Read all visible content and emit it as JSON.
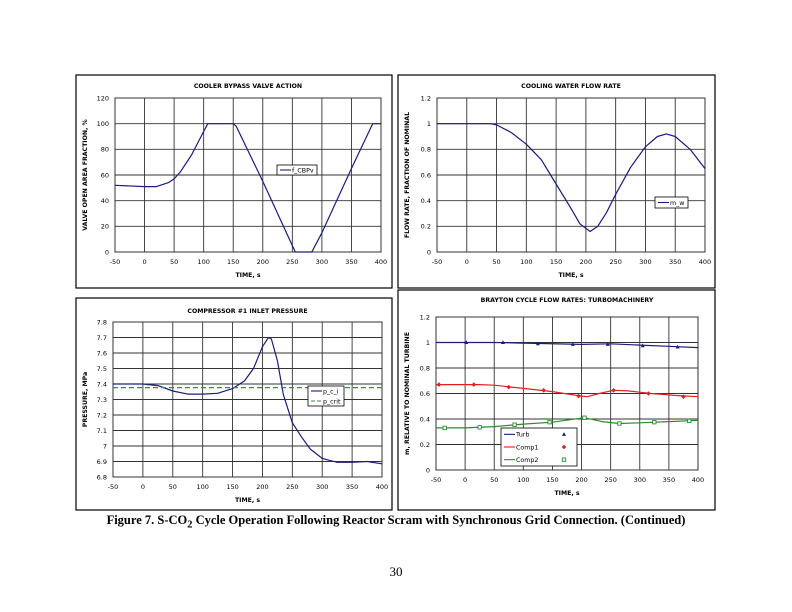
{
  "caption": {
    "prefix": "Figure 7. S-CO",
    "sub": "2",
    "suffix": " Cycle Operation Following Reactor Scram with Synchronous Grid Connection. (Continued)"
  },
  "page_number": "30",
  "chart_data": [
    {
      "type": "line",
      "title": "COOLER BYPASS VALVE ACTION",
      "xlabel": "TIME, s",
      "ylabel": "VALVE OPEN AREA FRACTION, %",
      "xlim": [
        -50,
        400
      ],
      "ylim": [
        0,
        120
      ],
      "xticks": [
        "-50",
        "0",
        "50",
        "100",
        "150",
        "200",
        "250",
        "300",
        "350",
        "400"
      ],
      "yticks": [
        "0",
        "20",
        "40",
        "60",
        "80",
        "100",
        "120"
      ],
      "grid": true,
      "legend_position": "center-right",
      "series": [
        {
          "name": "f_CBPv",
          "color": "#1c1c7a",
          "dash": false,
          "x": [
            -50,
            0,
            20,
            40,
            50,
            60,
            80,
            100,
            107,
            150,
            155,
            200,
            255,
            283,
            300,
            350,
            386,
            400
          ],
          "y": [
            52,
            51,
            51,
            54,
            57,
            62,
            76,
            94,
            100,
            100,
            98,
            55,
            0,
            0,
            15,
            65,
            100,
            100
          ]
        }
      ]
    },
    {
      "type": "line",
      "title": "COOLING WATER FLOW RATE",
      "xlabel": "TIME, s",
      "ylabel": "FLOW RATE, FRACTION OF NOMINAL",
      "xlim": [
        -50,
        400
      ],
      "ylim": [
        0,
        1.2
      ],
      "xticks": [
        "-50",
        "0",
        "50",
        "100",
        "150",
        "200",
        "250",
        "300",
        "350",
        "400"
      ],
      "yticks": [
        "0",
        "0.2",
        "0.4",
        "0.6",
        "0.8",
        "1",
        "1.2"
      ],
      "grid": true,
      "legend_position": "right",
      "series": [
        {
          "name": "m_w",
          "color": "#1c1c7a",
          "dash": false,
          "x": [
            -50,
            0,
            40,
            50,
            75,
            100,
            125,
            150,
            175,
            190,
            207,
            220,
            235,
            250,
            275,
            300,
            320,
            335,
            350,
            375,
            400
          ],
          "y": [
            1,
            1,
            1,
            0.99,
            0.93,
            0.84,
            0.72,
            0.53,
            0.34,
            0.22,
            0.16,
            0.2,
            0.31,
            0.45,
            0.66,
            0.82,
            0.9,
            0.92,
            0.9,
            0.8,
            0.65
          ]
        }
      ]
    },
    {
      "type": "line",
      "title": "COMPRESSOR #1 INLET PRESSURE",
      "xlabel": "TIME, s",
      "ylabel": "PRESSURE, MPa",
      "xlim": [
        -50,
        400
      ],
      "ylim": [
        6.8,
        7.8
      ],
      "xticks": [
        "-50",
        "0",
        "50",
        "100",
        "150",
        "200",
        "250",
        "300",
        "350",
        "400"
      ],
      "yticks": [
        "6.8",
        "6.9",
        "7",
        "7.1",
        "7.2",
        "7.3",
        "7.4",
        "7.5",
        "7.6",
        "7.7",
        "7.8"
      ],
      "grid": true,
      "legend_position": "right",
      "series": [
        {
          "name": "p_c_i",
          "color": "#1c1c7a",
          "dash": false,
          "x": [
            -50,
            0,
            25,
            50,
            75,
            100,
            125,
            150,
            170,
            185,
            200,
            210,
            215,
            225,
            235,
            250,
            265,
            280,
            300,
            325,
            350,
            375,
            400
          ],
          "y": [
            7.4,
            7.4,
            7.39,
            7.355,
            7.335,
            7.335,
            7.34,
            7.37,
            7.42,
            7.5,
            7.64,
            7.7,
            7.69,
            7.55,
            7.33,
            7.15,
            7.06,
            6.98,
            6.92,
            6.895,
            6.895,
            6.9,
            6.885
          ]
        },
        {
          "name": "p_crit",
          "color": "#3a8a3a",
          "dash": true,
          "x": [
            -50,
            400
          ],
          "y": [
            7.377,
            7.377
          ]
        }
      ]
    },
    {
      "type": "line",
      "title": "BRAYTON CYCLE FLOW RATES: TURBOMACHINERY",
      "xlabel": "TIME, s",
      "ylabel": "m, RELATIVE TO NOMINAL TURBINE",
      "xlim": [
        -50,
        400
      ],
      "ylim": [
        0,
        1.2
      ],
      "xticks": [
        "-50",
        "0",
        "50",
        "100",
        "150",
        "200",
        "250",
        "300",
        "350",
        "400"
      ],
      "yticks": [
        "0",
        "0.2",
        "0.4",
        "0.6",
        "0.8",
        "1",
        "1.2"
      ],
      "grid": true,
      "legend_position": "bottom-left",
      "series": [
        {
          "name": "Turb",
          "color": "#1c1c7a",
          "marker": "triangle",
          "dash": false,
          "x": [
            -50,
            50,
            100,
            200,
            250,
            300,
            350,
            400
          ],
          "y": [
            1,
            1,
            0.995,
            0.985,
            0.99,
            0.98,
            0.97,
            0.96
          ],
          "marker_x": [
            2,
            65,
            125,
            185,
            245,
            305,
            365
          ],
          "marker_y": [
            1,
            1,
            0.99,
            0.985,
            0.985,
            0.975,
            0.965
          ]
        },
        {
          "name": "Comp1",
          "color": "#e02020",
          "marker": "diamond",
          "dash": false,
          "x": [
            -50,
            25,
            50,
            100,
            150,
            200,
            210,
            230,
            255,
            280,
            320,
            360,
            400
          ],
          "y": [
            0.67,
            0.67,
            0.665,
            0.64,
            0.615,
            0.58,
            0.575,
            0.6,
            0.625,
            0.62,
            0.6,
            0.585,
            0.575
          ],
          "marker_x": [
            -45,
            15,
            75,
            135,
            195,
            255,
            315,
            375
          ],
          "marker_y": [
            0.67,
            0.67,
            0.65,
            0.625,
            0.58,
            0.625,
            0.6,
            0.575
          ]
        },
        {
          "name": "Comp2",
          "color": "#2e8b2e",
          "marker": "square",
          "dash": false,
          "x": [
            -50,
            0,
            50,
            100,
            150,
            205,
            235,
            265,
            300,
            350,
            400
          ],
          "y": [
            0.33,
            0.33,
            0.34,
            0.36,
            0.375,
            0.41,
            0.38,
            0.365,
            0.37,
            0.38,
            0.39
          ],
          "marker_x": [
            -35,
            25,
            85,
            145,
            205,
            265,
            325,
            385
          ],
          "marker_y": [
            0.33,
            0.335,
            0.355,
            0.375,
            0.41,
            0.365,
            0.375,
            0.385
          ]
        }
      ]
    }
  ]
}
